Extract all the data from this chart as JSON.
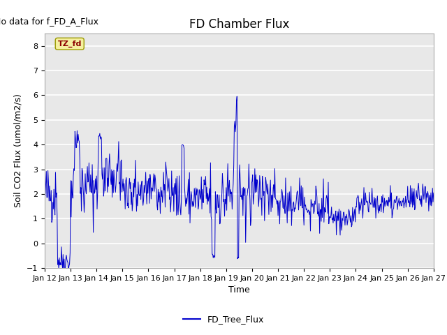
{
  "title": "FD Chamber Flux",
  "xlabel": "Time",
  "ylabel": "Soil CO2 Flux (umol/m2/s)",
  "no_data_text": "No data for f_FD_A_Flux",
  "legend_label": "FD_Tree_Flux",
  "tz_label": "TZ_fd",
  "line_color": "#0000cc",
  "ylim": [
    -1.0,
    8.5
  ],
  "yticks": [
    -1.0,
    0.0,
    1.0,
    2.0,
    3.0,
    4.0,
    5.0,
    6.0,
    7.0,
    8.0
  ],
  "bg_color": "#e8e8e8",
  "tz_box_color": "#f5f0a0",
  "tz_text_color": "#8b0000",
  "title_fontsize": 12,
  "tick_fontsize": 8,
  "axis_label_fontsize": 9,
  "no_data_fontsize": 9,
  "tz_fontsize": 8,
  "legend_fontsize": 9
}
